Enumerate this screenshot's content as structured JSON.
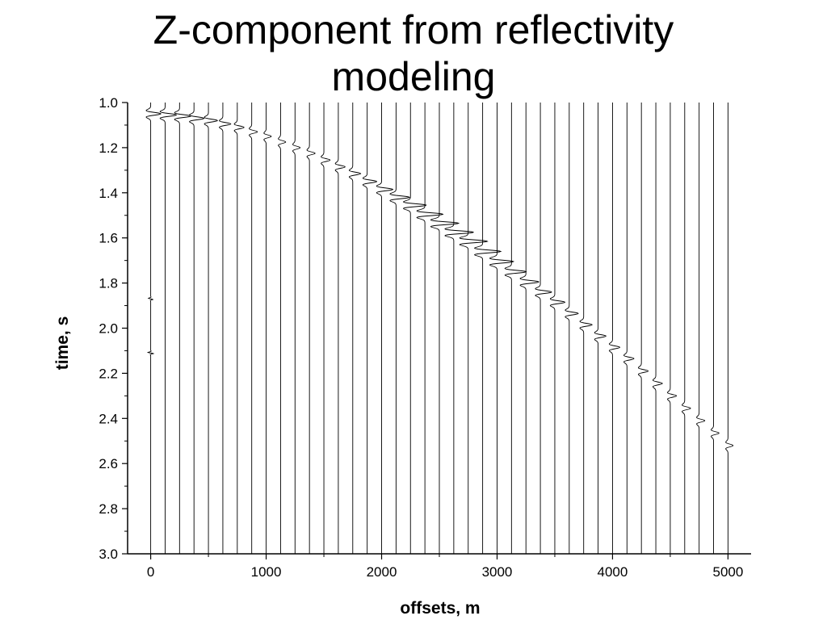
{
  "chart_data": {
    "type": "line",
    "title": "Z-component from reflectivity\nmodeling",
    "xlabel": "offsets, m",
    "ylabel": "time, s",
    "xlim": [
      -200,
      5200
    ],
    "ylim": [
      3.0,
      1.0
    ],
    "y_inverted": true,
    "x_ticks": [
      0,
      1000,
      2000,
      3000,
      4000,
      5000
    ],
    "x_tick_labels": [
      "0",
      "1000",
      "2000",
      "3000",
      "4000",
      "5000"
    ],
    "y_ticks": [
      1.0,
      1.2,
      1.4,
      1.6,
      1.8,
      2.0,
      2.2,
      2.4,
      2.6,
      2.8,
      3.0
    ],
    "y_tick_labels": [
      "1.0",
      "1.2",
      "1.4",
      "1.6",
      "1.8",
      "2.0",
      "2.2",
      "2.4",
      "2.6",
      "2.8",
      "3.0"
    ],
    "grid": false,
    "trace_offsets": [
      0,
      125,
      250,
      375,
      500,
      625,
      750,
      875,
      1000,
      1125,
      1250,
      1375,
      1500,
      1625,
      1750,
      1875,
      2000,
      2125,
      2250,
      2375,
      2500,
      2625,
      2750,
      2875,
      3000,
      3125,
      3250,
      3375,
      3500,
      3625,
      3750,
      3875,
      4000,
      4125,
      4250,
      4375,
      4500,
      4625,
      4750,
      4875,
      5000
    ],
    "arrival_times": [
      1.05,
      1.055,
      1.06,
      1.07,
      1.08,
      1.095,
      1.11,
      1.13,
      1.15,
      1.175,
      1.2,
      1.225,
      1.255,
      1.285,
      1.315,
      1.35,
      1.385,
      1.42,
      1.455,
      1.495,
      1.535,
      1.575,
      1.615,
      1.66,
      1.705,
      1.75,
      1.795,
      1.84,
      1.885,
      1.935,
      1.985,
      2.035,
      2.085,
      2.135,
      2.19,
      2.245,
      2.3,
      2.355,
      2.41,
      2.465,
      2.52
    ],
    "arrival_amplitudes": [
      0.9,
      1.0,
      1.0,
      0.9,
      0.8,
      0.7,
      0.6,
      0.5,
      0.45,
      0.45,
      0.45,
      0.5,
      0.55,
      0.6,
      0.7,
      0.85,
      1.0,
      1.2,
      1.4,
      1.6,
      1.7,
      1.75,
      1.7,
      1.6,
      1.45,
      1.3,
      1.15,
      1.0,
      0.9,
      0.8,
      0.75,
      0.7,
      0.65,
      0.62,
      0.6,
      0.58,
      0.55,
      0.52,
      0.5,
      0.48,
      0.45
    ]
  }
}
